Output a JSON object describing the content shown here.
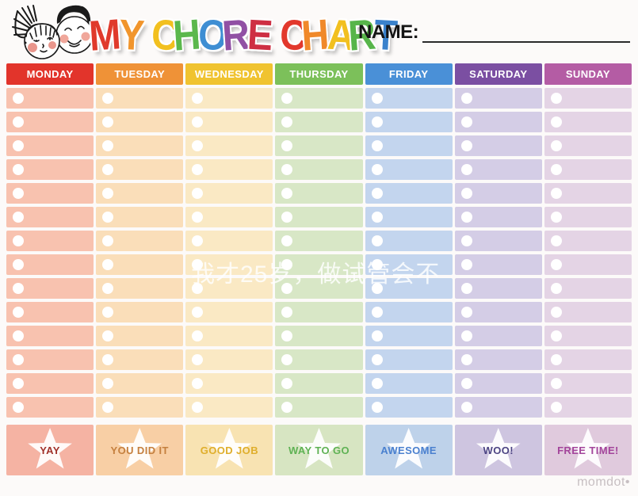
{
  "header": {
    "title_letters": [
      {
        "ch": "M",
        "color": "#E03A2B"
      },
      {
        "ch": "Y",
        "color": "#F1952C"
      },
      {
        "ch": " ",
        "color": ""
      },
      {
        "ch": "C",
        "color": "#F2C01F"
      },
      {
        "ch": "H",
        "color": "#5BB84C"
      },
      {
        "ch": "O",
        "color": "#3E8ED3"
      },
      {
        "ch": "R",
        "color": "#9150A4"
      },
      {
        "ch": "E",
        "color": "#CE2F43"
      },
      {
        "ch": " ",
        "color": ""
      },
      {
        "ch": "C",
        "color": "#E2382C"
      },
      {
        "ch": "H",
        "color": "#F0892A"
      },
      {
        "ch": "A",
        "color": "#F2C01F"
      },
      {
        "ch": "R",
        "color": "#57B54A"
      },
      {
        "ch": "T",
        "color": "#3A82CC"
      }
    ],
    "name_label": "NAME:"
  },
  "chart": {
    "rows": 14,
    "days": [
      {
        "label": "MONDAY",
        "header_color": "#E2342B",
        "cell_color": "#F8C2AF",
        "footer_color": "#F5B3A3",
        "footer_label": "YAY",
        "footer_text_color": "#A0322B"
      },
      {
        "label": "TUESDAY",
        "header_color": "#EF9237",
        "cell_color": "#FADEB9",
        "footer_color": "#F8CFA5",
        "footer_label": "YOU DID IT",
        "footer_text_color": "#C5803F"
      },
      {
        "label": "WEDNESDAY",
        "header_color": "#F0C330",
        "cell_color": "#FAE9C4",
        "footer_color": "#F8E3B2",
        "footer_label": "GOOD JOB",
        "footer_text_color": "#DFAE2B"
      },
      {
        "label": "THURSDAY",
        "header_color": "#7CC05A",
        "cell_color": "#D8E7C6",
        "footer_color": "#D7E5C2",
        "footer_label": "WAY TO GO",
        "footer_text_color": "#5FB254"
      },
      {
        "label": "FRIDAY",
        "header_color": "#4A90D7",
        "cell_color": "#C3D5EE",
        "footer_color": "#BED2EA",
        "footer_label": "AWESOME",
        "footer_text_color": "#4A80CF"
      },
      {
        "label": "SATURDAY",
        "header_color": "#7B4FA2",
        "cell_color": "#D4CDE6",
        "footer_color": "#CEC5E0",
        "footer_label": "WOO!",
        "footer_text_color": "#4C4483"
      },
      {
        "label": "SUNDAY",
        "header_color": "#B45CA4",
        "cell_color": "#E4D4E5",
        "footer_color": "#E0CADD",
        "footer_label": "FREE TIME!",
        "footer_text_color": "#A3459B"
      }
    ]
  },
  "watermark_text": "我才25岁，做试管会不",
  "brand": "momdot•"
}
